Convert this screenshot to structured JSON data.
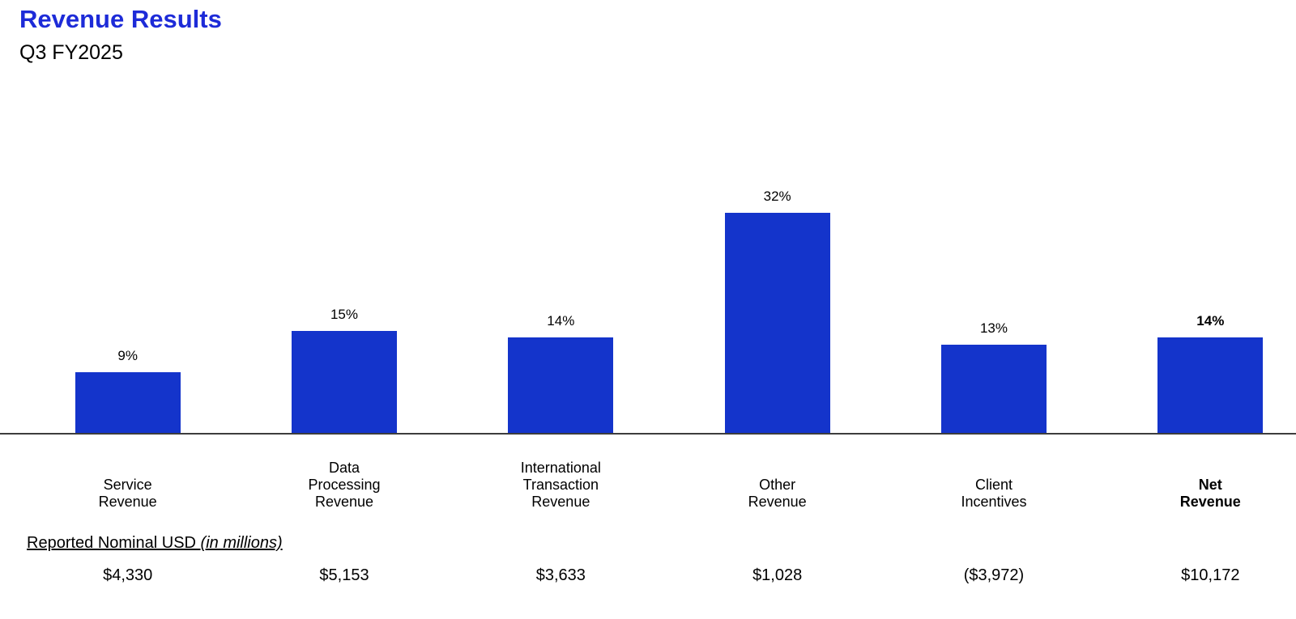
{
  "header": {
    "title": "Revenue Results",
    "subtitle": "Q3 FY2025"
  },
  "colors": {
    "title_text": "#1d2bd8",
    "bar_fill": "#1434cb",
    "axis_line": "#3d3d3d",
    "label_text": "#000000"
  },
  "usd_caption": {
    "main": "Reported Nominal USD ",
    "italic": "(in millions)"
  },
  "chart_data": {
    "type": "bar",
    "title": "Revenue Results",
    "subtitle": "Q3 FY2025",
    "categories": [
      "Service\nRevenue",
      "Data\nProcessing\nRevenue",
      "International\nTransaction\nRevenue",
      "Other\nRevenue",
      "Client\nIncentives",
      "Net\nRevenue"
    ],
    "values": [
      9,
      15,
      14,
      32,
      13,
      14
    ],
    "value_labels": [
      "9%",
      "15%",
      "14%",
      "32%",
      "13%",
      "14%"
    ],
    "bold_category_flags": [
      false,
      false,
      false,
      false,
      false,
      true
    ],
    "usd_row_label": "Reported Nominal USD (in millions)",
    "usd_values": [
      "$4,330",
      "$5,153",
      "$3,633",
      "$1,028",
      "($3,972)",
      "$10,172"
    ],
    "ylim": [
      0,
      35
    ],
    "grid": false,
    "legend": false,
    "bar_color": "#1434cb",
    "xlabel": "",
    "ylabel": ""
  }
}
